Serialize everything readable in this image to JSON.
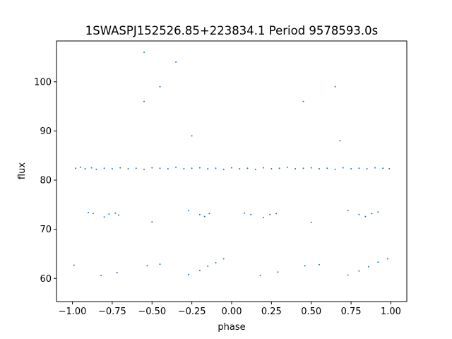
{
  "chart_data": {
    "type": "scatter",
    "title": "1SWASPJ152526.85+223834.1 Period 9578593.0s",
    "xlabel": "phase",
    "ylabel": "flux",
    "xlim": [
      -1.1,
      1.1
    ],
    "ylim": [
      55.3,
      108.3
    ],
    "x_ticks": [
      -1.0,
      -0.75,
      -0.5,
      -0.25,
      0.0,
      0.25,
      0.5,
      0.75,
      1.0
    ],
    "x_tick_labels": [
      "−1.00",
      "−0.75",
      "−0.50",
      "−0.25",
      "0.00",
      "0.25",
      "0.50",
      "0.75",
      "1.00"
    ],
    "y_ticks": [
      60,
      70,
      80,
      90,
      100
    ],
    "y_tick_labels": [
      "60",
      "70",
      "80",
      "90",
      "100"
    ],
    "grid": false,
    "point_color": "#1f77b4",
    "series": [
      {
        "values": [
          [
            -0.98,
            82.4
          ],
          [
            -0.95,
            82.6
          ],
          [
            -0.92,
            82.3
          ],
          [
            -0.88,
            82.5
          ],
          [
            -0.85,
            82.2
          ],
          [
            -0.8,
            82.4
          ],
          [
            -0.75,
            82.3
          ],
          [
            -0.7,
            82.5
          ],
          [
            -0.65,
            82.3
          ],
          [
            -0.6,
            82.4
          ],
          [
            -0.55,
            82.2
          ],
          [
            -0.5,
            82.5
          ],
          [
            -0.45,
            82.4
          ],
          [
            -0.4,
            82.3
          ],
          [
            -0.35,
            82.6
          ],
          [
            -0.3,
            82.3
          ],
          [
            -0.25,
            82.4
          ],
          [
            -0.2,
            82.5
          ],
          [
            -0.15,
            82.3
          ],
          [
            -0.1,
            82.4
          ],
          [
            -0.05,
            82.2
          ],
          [
            0.0,
            82.5
          ],
          [
            0.05,
            82.3
          ],
          [
            0.1,
            82.4
          ],
          [
            0.15,
            82.2
          ],
          [
            0.2,
            82.5
          ],
          [
            0.25,
            82.3
          ],
          [
            0.3,
            82.4
          ],
          [
            0.35,
            82.6
          ],
          [
            0.4,
            82.3
          ],
          [
            0.45,
            82.4
          ],
          [
            0.5,
            82.5
          ],
          [
            0.55,
            82.3
          ],
          [
            0.6,
            82.4
          ],
          [
            0.65,
            82.2
          ],
          [
            0.7,
            82.5
          ],
          [
            0.75,
            82.3
          ],
          [
            0.8,
            82.4
          ],
          [
            0.85,
            82.3
          ],
          [
            0.9,
            82.5
          ],
          [
            0.95,
            82.4
          ],
          [
            0.99,
            82.3
          ],
          [
            -0.9,
            73.4
          ],
          [
            -0.87,
            73.2
          ],
          [
            -0.8,
            72.5
          ],
          [
            -0.77,
            73.1
          ],
          [
            -0.73,
            73.3
          ],
          [
            -0.71,
            72.9
          ],
          [
            -0.5,
            71.5
          ],
          [
            -0.27,
            73.8
          ],
          [
            -0.2,
            73.0
          ],
          [
            -0.17,
            72.6
          ],
          [
            -0.14,
            73.2
          ],
          [
            0.08,
            73.3
          ],
          [
            0.12,
            73.0
          ],
          [
            0.2,
            72.4
          ],
          [
            0.24,
            73.0
          ],
          [
            0.28,
            73.2
          ],
          [
            0.5,
            71.4
          ],
          [
            0.73,
            73.8
          ],
          [
            0.8,
            73.0
          ],
          [
            0.84,
            72.6
          ],
          [
            0.88,
            73.2
          ],
          [
            0.92,
            73.5
          ],
          [
            -0.99,
            62.7
          ],
          [
            -0.82,
            60.6
          ],
          [
            -0.72,
            61.2
          ],
          [
            -0.53,
            62.6
          ],
          [
            -0.45,
            62.9
          ],
          [
            -0.27,
            60.8
          ],
          [
            -0.2,
            61.6
          ],
          [
            -0.15,
            62.5
          ],
          [
            -0.1,
            63.2
          ],
          [
            -0.05,
            64.0
          ],
          [
            0.18,
            60.6
          ],
          [
            0.29,
            61.3
          ],
          [
            0.46,
            62.6
          ],
          [
            0.55,
            62.8
          ],
          [
            0.73,
            60.7
          ],
          [
            0.8,
            61.5
          ],
          [
            0.86,
            62.4
          ],
          [
            0.92,
            63.3
          ],
          [
            0.98,
            64.0
          ],
          [
            -0.55,
            96.0
          ],
          [
            -0.45,
            99.0
          ],
          [
            -0.35,
            104.0
          ],
          [
            -0.25,
            89.0
          ],
          [
            -0.55,
            106.0
          ],
          [
            0.45,
            96.0
          ],
          [
            0.65,
            99.0
          ],
          [
            0.68,
            88.0
          ]
        ]
      }
    ]
  }
}
